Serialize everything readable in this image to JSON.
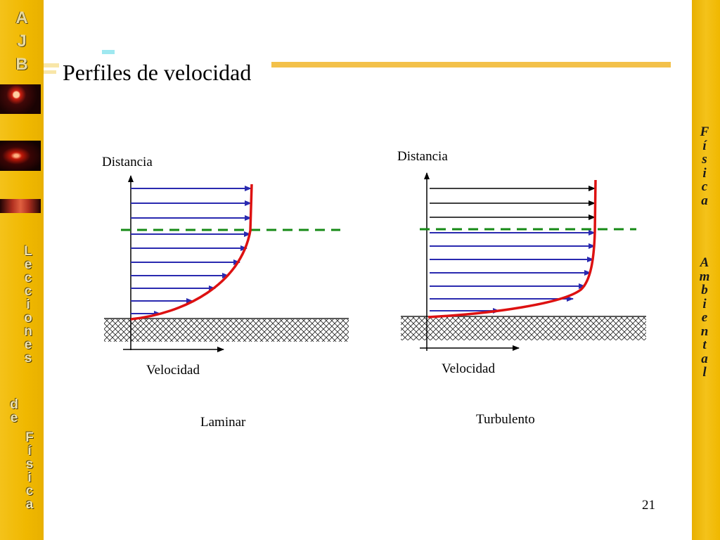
{
  "slide": {
    "title": "Perfiles de velocidad",
    "page_number": "21",
    "sidebar_logo": [
      "A",
      "J",
      "B"
    ],
    "sidebar_left_text": [
      "L",
      "e",
      "c",
      "c",
      "i",
      "o",
      "n",
      "e",
      "s"
    ],
    "sidebar_left_de": [
      "d",
      "e"
    ],
    "sidebar_left_fisica": [
      "F",
      "í",
      "s",
      "i",
      "c",
      "a"
    ],
    "sidebar_right_fisica": [
      "F",
      "í",
      "s",
      "i",
      "c",
      "a"
    ],
    "sidebar_right_ambiental": [
      "A",
      "m",
      "b",
      "i",
      "e",
      "n",
      "t",
      "a",
      "l"
    ]
  },
  "diagrams": {
    "laminar": {
      "y_axis_label": "Distancia",
      "x_axis_label": "Velocidad",
      "caption": "Laminar"
    },
    "turbulento": {
      "y_axis_label": "Distancia",
      "x_axis_label": "Velocidad",
      "caption": "Turbulento"
    }
  },
  "colors": {
    "sidebar": "#f0b800",
    "title_bar": "#f3c14a",
    "arrow_blue": "#2a2ab0",
    "arrow_black": "#000000",
    "profile_red": "#dd1111",
    "boundary_green": "#168a16"
  }
}
